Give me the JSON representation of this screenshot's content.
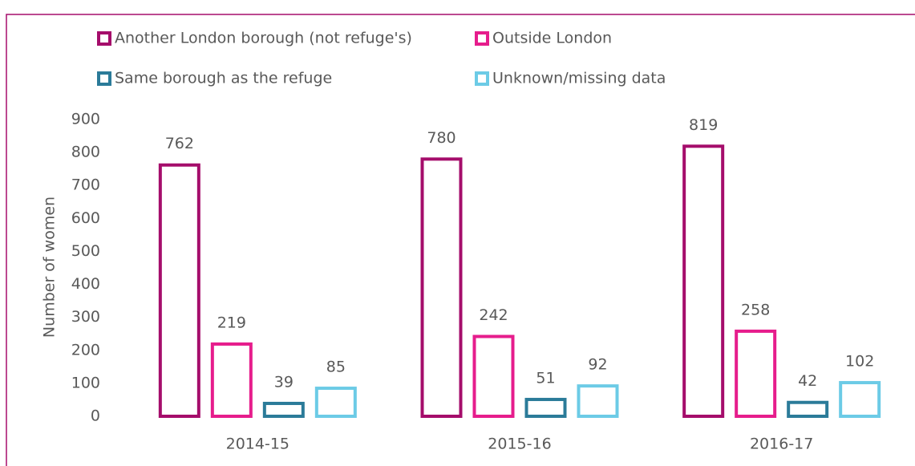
{
  "chart_data": {
    "type": "bar",
    "categories": [
      "2014-15",
      "2015-16",
      "2016-17"
    ],
    "y_label": "Number of women",
    "series": [
      {
        "name": "Another London borough (not refuge's)",
        "color": "#a50d6b",
        "values": [
          762,
          780,
          819
        ]
      },
      {
        "name": "Outside London",
        "color": "#e61d8c",
        "values": [
          219,
          242,
          258
        ]
      },
      {
        "name": "Same borough as the refuge",
        "color": "#2b7b99",
        "values": [
          39,
          51,
          42
        ]
      },
      {
        "name": "Unknown/missing data",
        "color": "#6ccbe6",
        "values": [
          85,
          92,
          102
        ]
      }
    ],
    "ylim": [
      0,
      900
    ],
    "yticks": [
      0,
      100,
      200,
      300,
      400,
      500,
      600,
      700,
      800,
      900
    ],
    "legend": "top",
    "grid": false
  }
}
